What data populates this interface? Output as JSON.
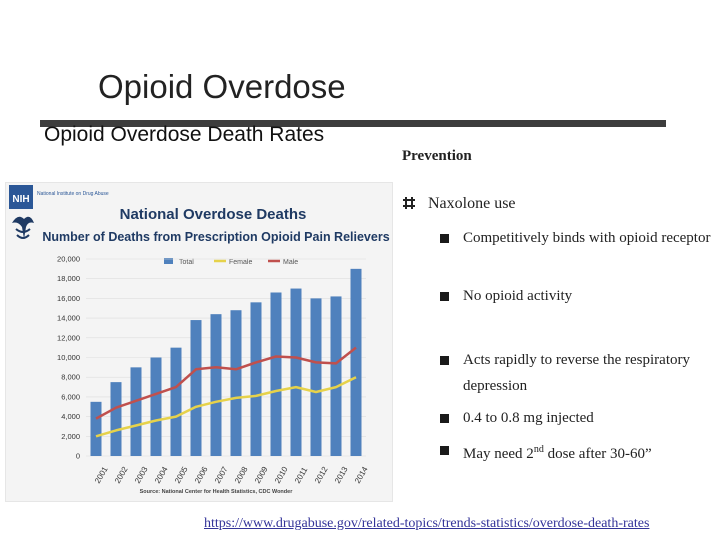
{
  "slide": {
    "title": "Opioid Overdose",
    "left_heading": "Opioid Overdose Death Rates",
    "link_text": "https://www.drugabuse.gov/related-topics/trends-statistics/overdose-death-rates"
  },
  "right": {
    "heading": "Prevention",
    "level1": "Naxolone use",
    "sub_items": [
      "Competitively binds with opioid receptor",
      "No opioid activity",
      "Acts rapidly to reverse the respiratory depression",
      "0.4 to 0.8 mg injected"
    ],
    "last_item": {
      "prefix": "May need 2",
      "sup": "nd",
      "suffix": " dose after 30-60”"
    }
  },
  "logo": {
    "nih": "NIH",
    "institute": "National Institute on Drug Abuse"
  },
  "colors": {
    "total": "#4f81bd",
    "female": "#e6d24a",
    "male": "#c0504d"
  },
  "chart_data": {
    "type": "bar",
    "title": "National Overdose Deaths",
    "subtitle": "Number of Deaths from Prescription Opioid Pain Relievers",
    "legend": [
      "Total",
      "Female",
      "Male"
    ],
    "legend_position": "top",
    "categories": [
      "2001",
      "2002",
      "2003",
      "2004",
      "2005",
      "2006",
      "2007",
      "2008",
      "2009",
      "2010",
      "2011",
      "2012",
      "2013",
      "2014"
    ],
    "y_ticks": [
      "0",
      "2,000",
      "4,000",
      "6,000",
      "8,000",
      "10,000",
      "12,000",
      "14,000",
      "16,000",
      "18,000",
      "20,000"
    ],
    "ylim": [
      0,
      20000
    ],
    "series": [
      {
        "name": "Total",
        "kind": "bar",
        "values": [
          5500,
          7500,
          9000,
          10000,
          11000,
          13800,
          14400,
          14800,
          15600,
          16600,
          17000,
          16000,
          16200,
          19000
        ]
      },
      {
        "name": "Female",
        "kind": "line",
        "values": [
          2000,
          2600,
          3100,
          3600,
          4000,
          5000,
          5500,
          5900,
          6100,
          6600,
          7000,
          6500,
          7000,
          8000
        ]
      },
      {
        "name": "Male",
        "kind": "line",
        "values": [
          3800,
          4900,
          5600,
          6300,
          7000,
          8800,
          9000,
          8800,
          9500,
          10100,
          10000,
          9500,
          9400,
          11000
        ]
      }
    ],
    "source": "Source: National Center for Health Statistics, CDC Wonder",
    "xlabel": "",
    "ylabel": ""
  }
}
